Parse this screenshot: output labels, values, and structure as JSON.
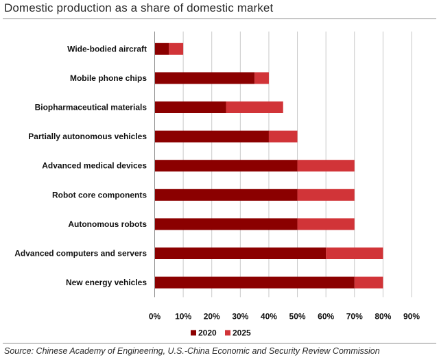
{
  "title": "Domestic production as a share of domestic market",
  "source": "Source: Chinese Academy of Engineering, U.S.-China Economic and Security Review Commission",
  "chart_data": {
    "type": "bar",
    "orientation": "horizontal",
    "stacked": true,
    "categories": [
      "Wide-bodied aircraft",
      "Mobile phone chips",
      "Biopharmaceutical materials",
      "Partially autonomous vehicles",
      "Advanced medical devices",
      "Robot core components",
      "Autonomous robots",
      "Advanced computers and servers",
      "New energy vehicles"
    ],
    "series": [
      {
        "name": "2020",
        "color": "#8b0000",
        "values": [
          5,
          35,
          25,
          40,
          50,
          50,
          50,
          60,
          70
        ]
      },
      {
        "name": "2025",
        "color": "#d13438",
        "values": [
          5,
          5,
          20,
          10,
          20,
          20,
          20,
          20,
          10
        ]
      }
    ],
    "xlim": [
      0,
      90
    ],
    "xticks": [
      0,
      10,
      20,
      30,
      40,
      50,
      60,
      70,
      80,
      90
    ],
    "xtick_labels": [
      "0%",
      "10%",
      "20%",
      "30%",
      "40%",
      "50%",
      "60%",
      "70%",
      "80%",
      "90%"
    ],
    "grid": "vertical",
    "legend": {
      "position": "bottom",
      "entries": [
        "2020",
        "2025"
      ]
    },
    "gridline_color": "#c9c9c9"
  }
}
